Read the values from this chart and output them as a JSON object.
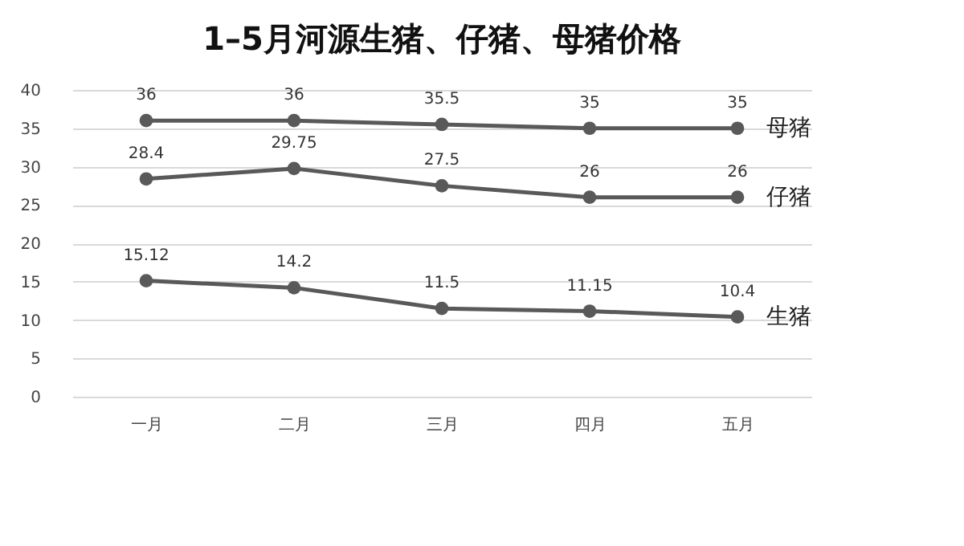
{
  "chart_data": {
    "type": "line",
    "title": "1–5月河源生猪、仔猪、母猪价格",
    "categories": [
      "一月",
      "二月",
      "三月",
      "四月",
      "五月"
    ],
    "series": [
      {
        "name": "母猪",
        "color": "#595959",
        "values": [
          36,
          36,
          35.5,
          35,
          35
        ]
      },
      {
        "name": "仔猪",
        "color": "#595959",
        "values": [
          28.4,
          29.75,
          27.5,
          26,
          26
        ]
      },
      {
        "name": "生猪",
        "color": "#595959",
        "values": [
          15.12,
          14.2,
          11.5,
          11.15,
          10.4
        ]
      }
    ],
    "ylim": [
      0,
      40
    ],
    "yticks": [
      0,
      5,
      10,
      15,
      20,
      25,
      30,
      35,
      40
    ],
    "grid": "y",
    "marker": "circle",
    "line_style": "solid",
    "data_labels": true
  }
}
